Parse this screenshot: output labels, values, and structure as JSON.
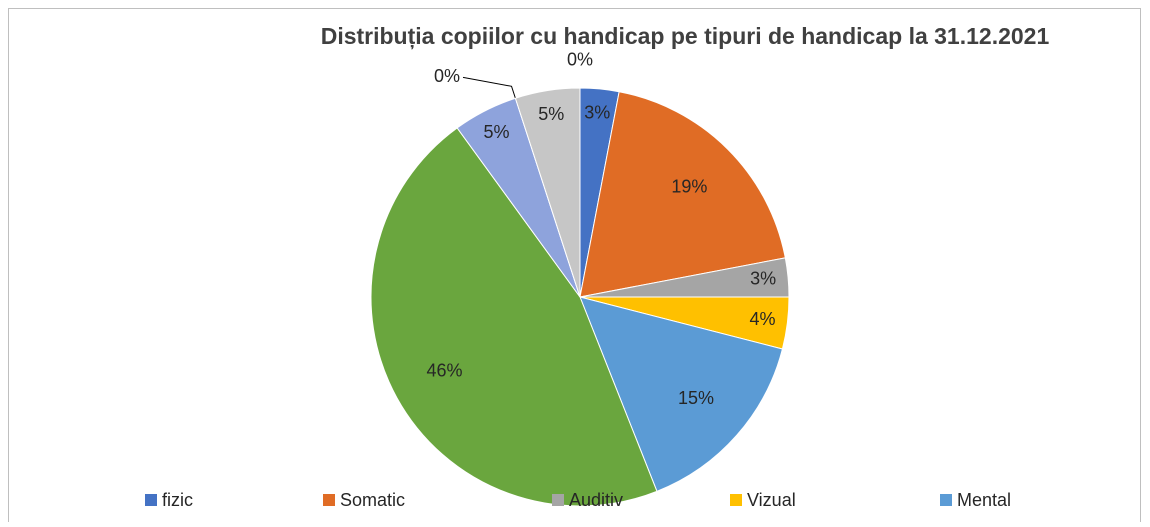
{
  "chart_data": {
    "type": "pie",
    "title": "Distribuția copiilor cu handicap pe  tipuri de handicap la 31.12.2021",
    "categories": [
      "fizic",
      "Somatic",
      "Auditiv",
      "Vizual",
      "Mental",
      null,
      null,
      null,
      null,
      null
    ],
    "values": [
      3,
      19,
      3,
      4,
      15,
      46,
      5,
      0,
      5,
      0
    ],
    "value_labels": [
      "3%",
      "19%",
      "3%",
      "4%",
      "15%",
      "46%",
      "5%",
      "0%",
      "5%",
      "0%"
    ],
    "colors": [
      "#4472c4",
      "#e06c25",
      "#a5a5a5",
      "#ffc000",
      "#5b9bd5",
      "#6aa63e",
      "#8ea3dc",
      "#f4a77a",
      "#c6c6c6",
      "#9e9e9e"
    ],
    "legend": "bottom"
  }
}
